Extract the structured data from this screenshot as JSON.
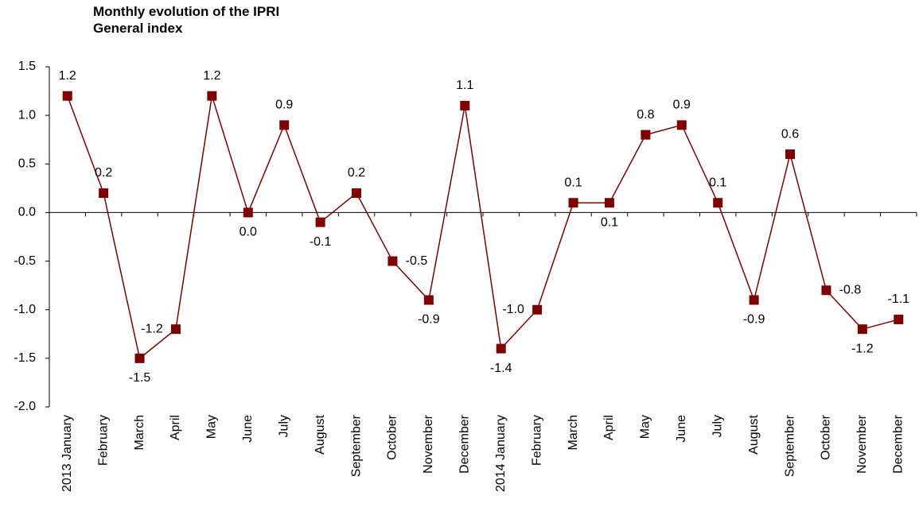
{
  "chart_data": {
    "type": "line",
    "title": "Monthly evolution of the IPRI General index",
    "categories": [
      "2013 January",
      "February",
      "March",
      "April",
      "May",
      "June",
      "July",
      "August",
      "September",
      "October",
      "November",
      "December",
      "2014 January",
      "February",
      "March",
      "April",
      "May",
      "June",
      "July",
      "August",
      "September",
      "October",
      "November",
      "December"
    ],
    "series": [
      {
        "color": "#800000",
        "values": [
          1.2,
          0.2,
          -1.5,
          -1.2,
          1.2,
          0,
          0.9,
          -0.1,
          0.2,
          -0.5,
          -0.9,
          1.1,
          -1.4,
          -1,
          0.1,
          0.1,
          0.8,
          0.9,
          0.1,
          -0.9,
          0.6,
          -0.8,
          -1.2,
          -1.1
        ],
        "value_labels": [
          "1.2",
          "0.2",
          "-1.5",
          "-1.2",
          "1.2",
          "0.0",
          "0.9",
          "-0.1",
          "0.2",
          "-0.5",
          "-0.9",
          "1.1",
          "-1.4",
          "-1.0",
          "0.1",
          "0.1",
          "0.8",
          "0.9",
          "0.1",
          "-0.9",
          "0.6",
          "-0.8",
          "-1.2",
          "-1.1"
        ]
      }
    ],
    "ylim": [
      -2,
      1.5
    ],
    "yticks": [
      {
        "value": -2,
        "label": "-2.0"
      },
      -1.5,
      {
        "value": -1,
        "label": "-1.0"
      },
      -0.5,
      {
        "value": 0,
        "label": "0.0"
      },
      0.5,
      {
        "value": 1,
        "label": "1.0"
      },
      1.5
    ],
    "grid": false
  }
}
